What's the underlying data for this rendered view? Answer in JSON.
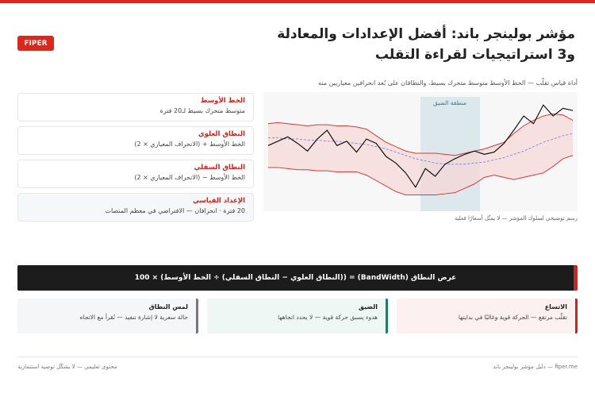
{
  "header": {
    "logo": "FIPER",
    "title_lines": [
      "مؤشر بولينجر باند: أفضل الإعدادات والمعادلة",
      "و3 استراتيجيات لقراءة التقلب"
    ]
  },
  "subtitle": "أداة قياس تقلّب — الخط الأوسط متوسط متحرك بسيط، والنطاقان على بُعد انحرافين معياريين منه",
  "cards": [
    {
      "title": "الخط الأوسط",
      "text": "متوسط متحرك بسيط لـ20 فترة"
    },
    {
      "title": "النطاق العلوي",
      "text": "الخط الأوسط + (الانحراف المعياري × 2)"
    },
    {
      "title": "النطاق السفلي",
      "text": "الخط الأوسط − (الانحراف المعياري × 2)"
    },
    {
      "title": "الإعداد القياسي",
      "text": "20 فترة · انحرافان — الافتراضي في معظم المنصات"
    }
  ],
  "chart": {
    "type": "line",
    "zone_label": "منطقة الضيق",
    "caption": "رسم توضيحي لسلوك المؤشر — لا يمثّل أسعارًا فعلية",
    "ylim": [
      0,
      100
    ],
    "band_fill": "#f6d5d5",
    "series": [
      {
        "color": "#111111",
        "values": [
          57,
          61,
          65,
          59,
          52,
          63,
          71,
          57,
          61,
          51,
          63,
          59,
          47,
          41,
          32,
          19,
          36,
          29,
          40,
          45,
          49,
          52,
          49,
          51,
          59,
          71,
          84,
          77,
          94,
          84,
          91,
          89
        ]
      },
      {
        "color": "#d63a3a",
        "values": [
          77,
          78,
          77,
          76,
          75,
          76,
          76,
          75,
          75,
          74,
          72,
          66,
          60,
          56,
          52,
          50,
          50,
          50,
          49,
          48,
          50,
          52,
          54,
          57,
          60,
          68,
          75,
          80,
          84,
          86,
          85,
          80
        ]
      },
      {
        "color": "#8a8fd6",
        "dashed": true,
        "values": [
          64,
          64,
          63,
          63,
          62,
          62,
          61,
          61,
          60,
          59,
          58,
          56,
          54,
          51,
          48,
          45,
          43,
          41,
          40,
          40,
          40,
          41,
          42,
          44,
          46,
          49,
          52,
          56,
          60,
          63,
          66,
          68
        ]
      },
      {
        "color": "#d63a3a",
        "values": [
          37,
          37,
          36,
          35,
          35,
          34,
          34,
          33,
          33,
          33,
          30,
          25,
          20,
          15,
          12,
          12,
          12,
          12,
          13,
          14,
          18,
          22,
          28,
          30,
          28,
          26,
          28,
          30,
          32,
          38,
          45,
          48
        ]
      }
    ]
  },
  "formula": "عرض النطاق (BandWidth) = ((النطاق العلوي − النطاق السفلي) ÷ الخط الأوسط) × 100",
  "states": [
    {
      "title": "الاتساع",
      "text": "تقلّب مرتفع — الحركة قوية وغالبًا في بدايتها"
    },
    {
      "title": "الضيق",
      "text": "هدوء يسبق حركة قوية — لا يحدد اتجاهها"
    },
    {
      "title": "لمس النطاق",
      "text": "حالة سعرية لا إشارة تنفيذ — تُقرأ مع الاتجاه"
    }
  ],
  "footer": {
    "right": "fiper.me — دليل مؤشر بولينجر باند",
    "left": "محتوى تعليمي — لا يشكّل توصية استثمارية"
  }
}
